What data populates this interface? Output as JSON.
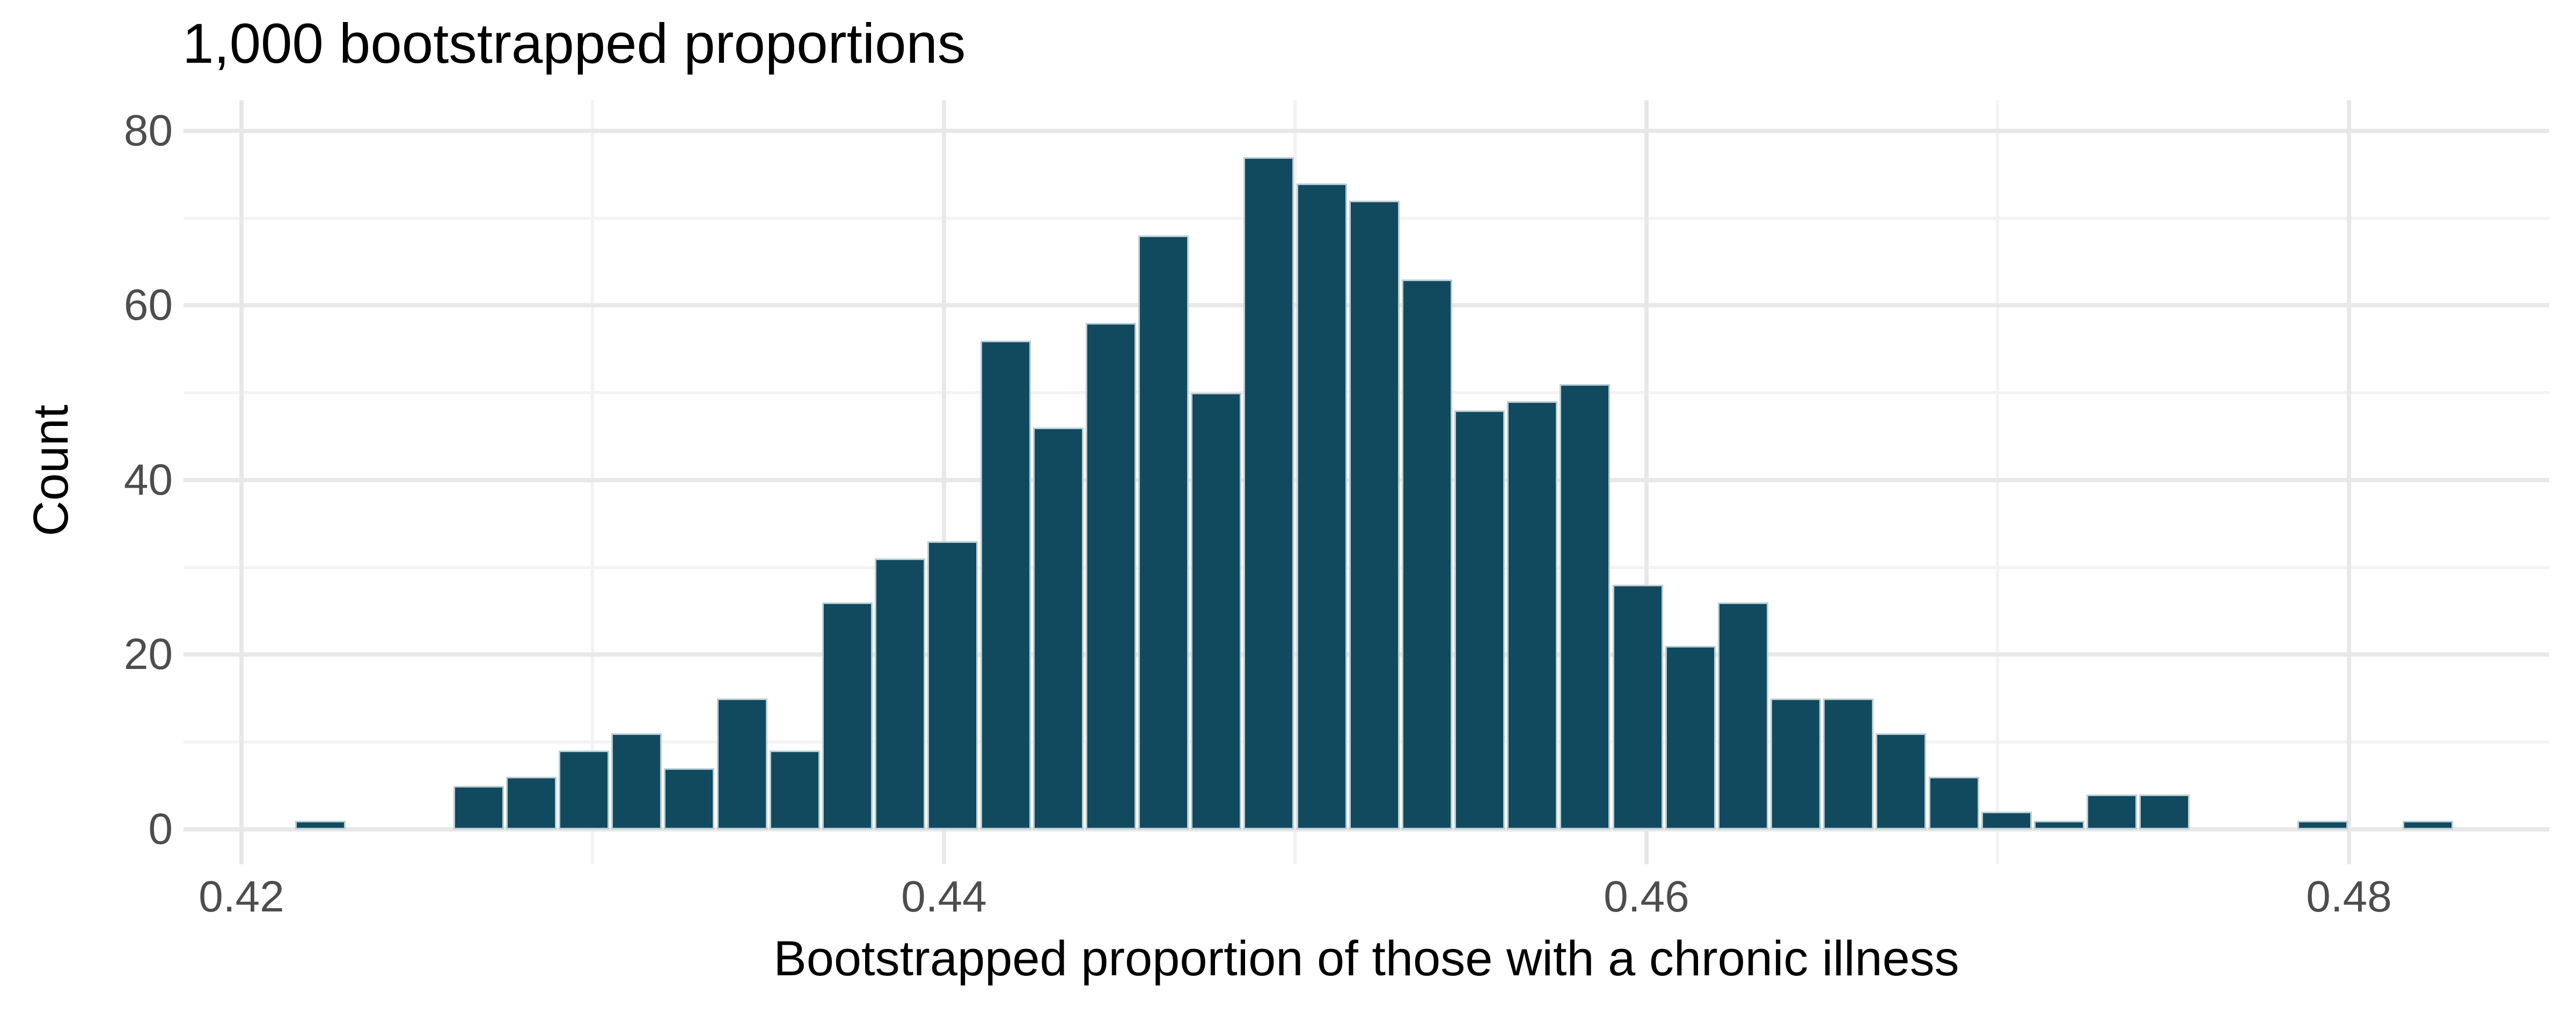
{
  "title": "1,000 bootstrapped proportions",
  "x_axis": {
    "label": "Bootstrapped proportion of those with a chronic illness",
    "ticks": [
      {
        "value": 0.42,
        "label": "0.42"
      },
      {
        "value": 0.44,
        "label": "0.44"
      },
      {
        "value": 0.46,
        "label": "0.46"
      },
      {
        "value": 0.48,
        "label": "0.48"
      }
    ],
    "minor_ticks": [
      0.43,
      0.45,
      0.47
    ]
  },
  "y_axis": {
    "label": "Count",
    "ticks": [
      {
        "value": 80,
        "label": "80"
      },
      {
        "value": 60,
        "label": "60"
      },
      {
        "value": 40,
        "label": "40"
      },
      {
        "value": 20,
        "label": "20"
      },
      {
        "value": 0,
        "label": "0"
      }
    ],
    "minor_ticks": [
      70,
      50,
      30,
      10
    ]
  },
  "chart_data": {
    "type": "bar",
    "subtype": "histogram",
    "title": "1,000 bootstrapped proportions",
    "xlabel": "Bootstrapped proportion of those with a chronic illness",
    "ylabel": "Count",
    "total_samples": 1000,
    "bin_width": 0.0015,
    "bin_centers": [
      0.42225,
      0.42675,
      0.42825,
      0.42975,
      0.43125,
      0.43275,
      0.43425,
      0.43575,
      0.43725,
      0.43875,
      0.44025,
      0.44175,
      0.44325,
      0.44475,
      0.44625,
      0.44775,
      0.44925,
      0.45075,
      0.45225,
      0.45375,
      0.45525,
      0.45675,
      0.45825,
      0.45975,
      0.46125,
      0.46275,
      0.46425,
      0.46575,
      0.46725,
      0.46875,
      0.47025,
      0.47175,
      0.47325,
      0.47475,
      0.47925,
      0.48225
    ],
    "counts": [
      1,
      5,
      6,
      9,
      11,
      7,
      15,
      9,
      26,
      31,
      33,
      56,
      46,
      58,
      68,
      50,
      77,
      74,
      72,
      63,
      48,
      49,
      51,
      28,
      21,
      26,
      15,
      15,
      11,
      6,
      2,
      1,
      4,
      4,
      1,
      1
    ],
    "xlim": [
      0.41835,
      0.4857
    ],
    "ylim": [
      -4,
      83.5
    ],
    "grid": "major+minor",
    "legend": "none"
  },
  "style": {
    "background": "#ffffff",
    "bar_fill": "#114a5e",
    "bar_stroke": "#b9cdd5",
    "grid_major": "#e8e8e8",
    "grid_minor": "#f3f3f3",
    "tick_text_color": "#4d4d4d",
    "title_text_color": "#000000"
  }
}
